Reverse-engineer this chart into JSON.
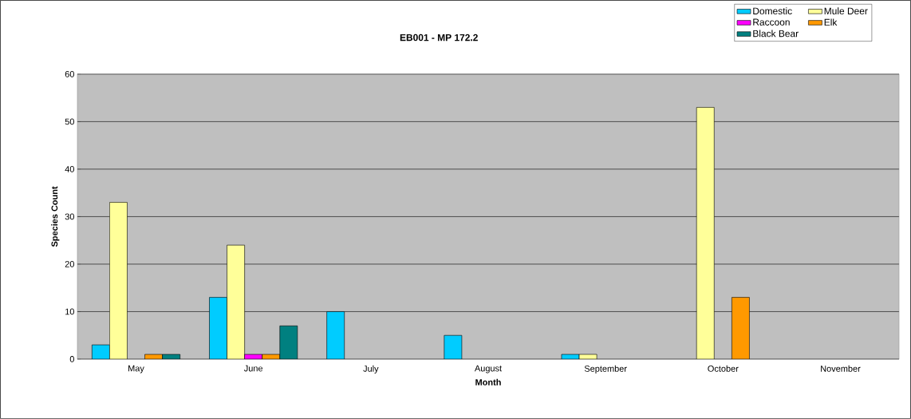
{
  "chart_data": {
    "type": "bar",
    "title": "EB001 - MP 172.2",
    "xlabel": "Month",
    "ylabel": "Species Count",
    "categories": [
      "May",
      "June",
      "July",
      "August",
      "September",
      "October",
      "November"
    ],
    "series": [
      {
        "name": "Domestic",
        "color": "#00ccff",
        "values": [
          3,
          13,
          10,
          5,
          1,
          null,
          null
        ]
      },
      {
        "name": "Mule Deer",
        "color": "#ffff99",
        "values": [
          33,
          24,
          null,
          null,
          1,
          53,
          null
        ]
      },
      {
        "name": "Raccoon",
        "color": "#ff00ff",
        "values": [
          null,
          1,
          null,
          null,
          null,
          null,
          null
        ]
      },
      {
        "name": "Elk",
        "color": "#ff9900",
        "values": [
          1,
          1,
          null,
          null,
          null,
          13,
          null
        ]
      },
      {
        "name": "Black Bear",
        "color": "#008080",
        "values": [
          1,
          7,
          null,
          null,
          null,
          null,
          null
        ]
      }
    ],
    "ylim": [
      0,
      60
    ],
    "yticks": [
      0,
      10,
      20,
      30,
      40,
      50,
      60
    ],
    "grid": "y",
    "legend": "top right"
  }
}
